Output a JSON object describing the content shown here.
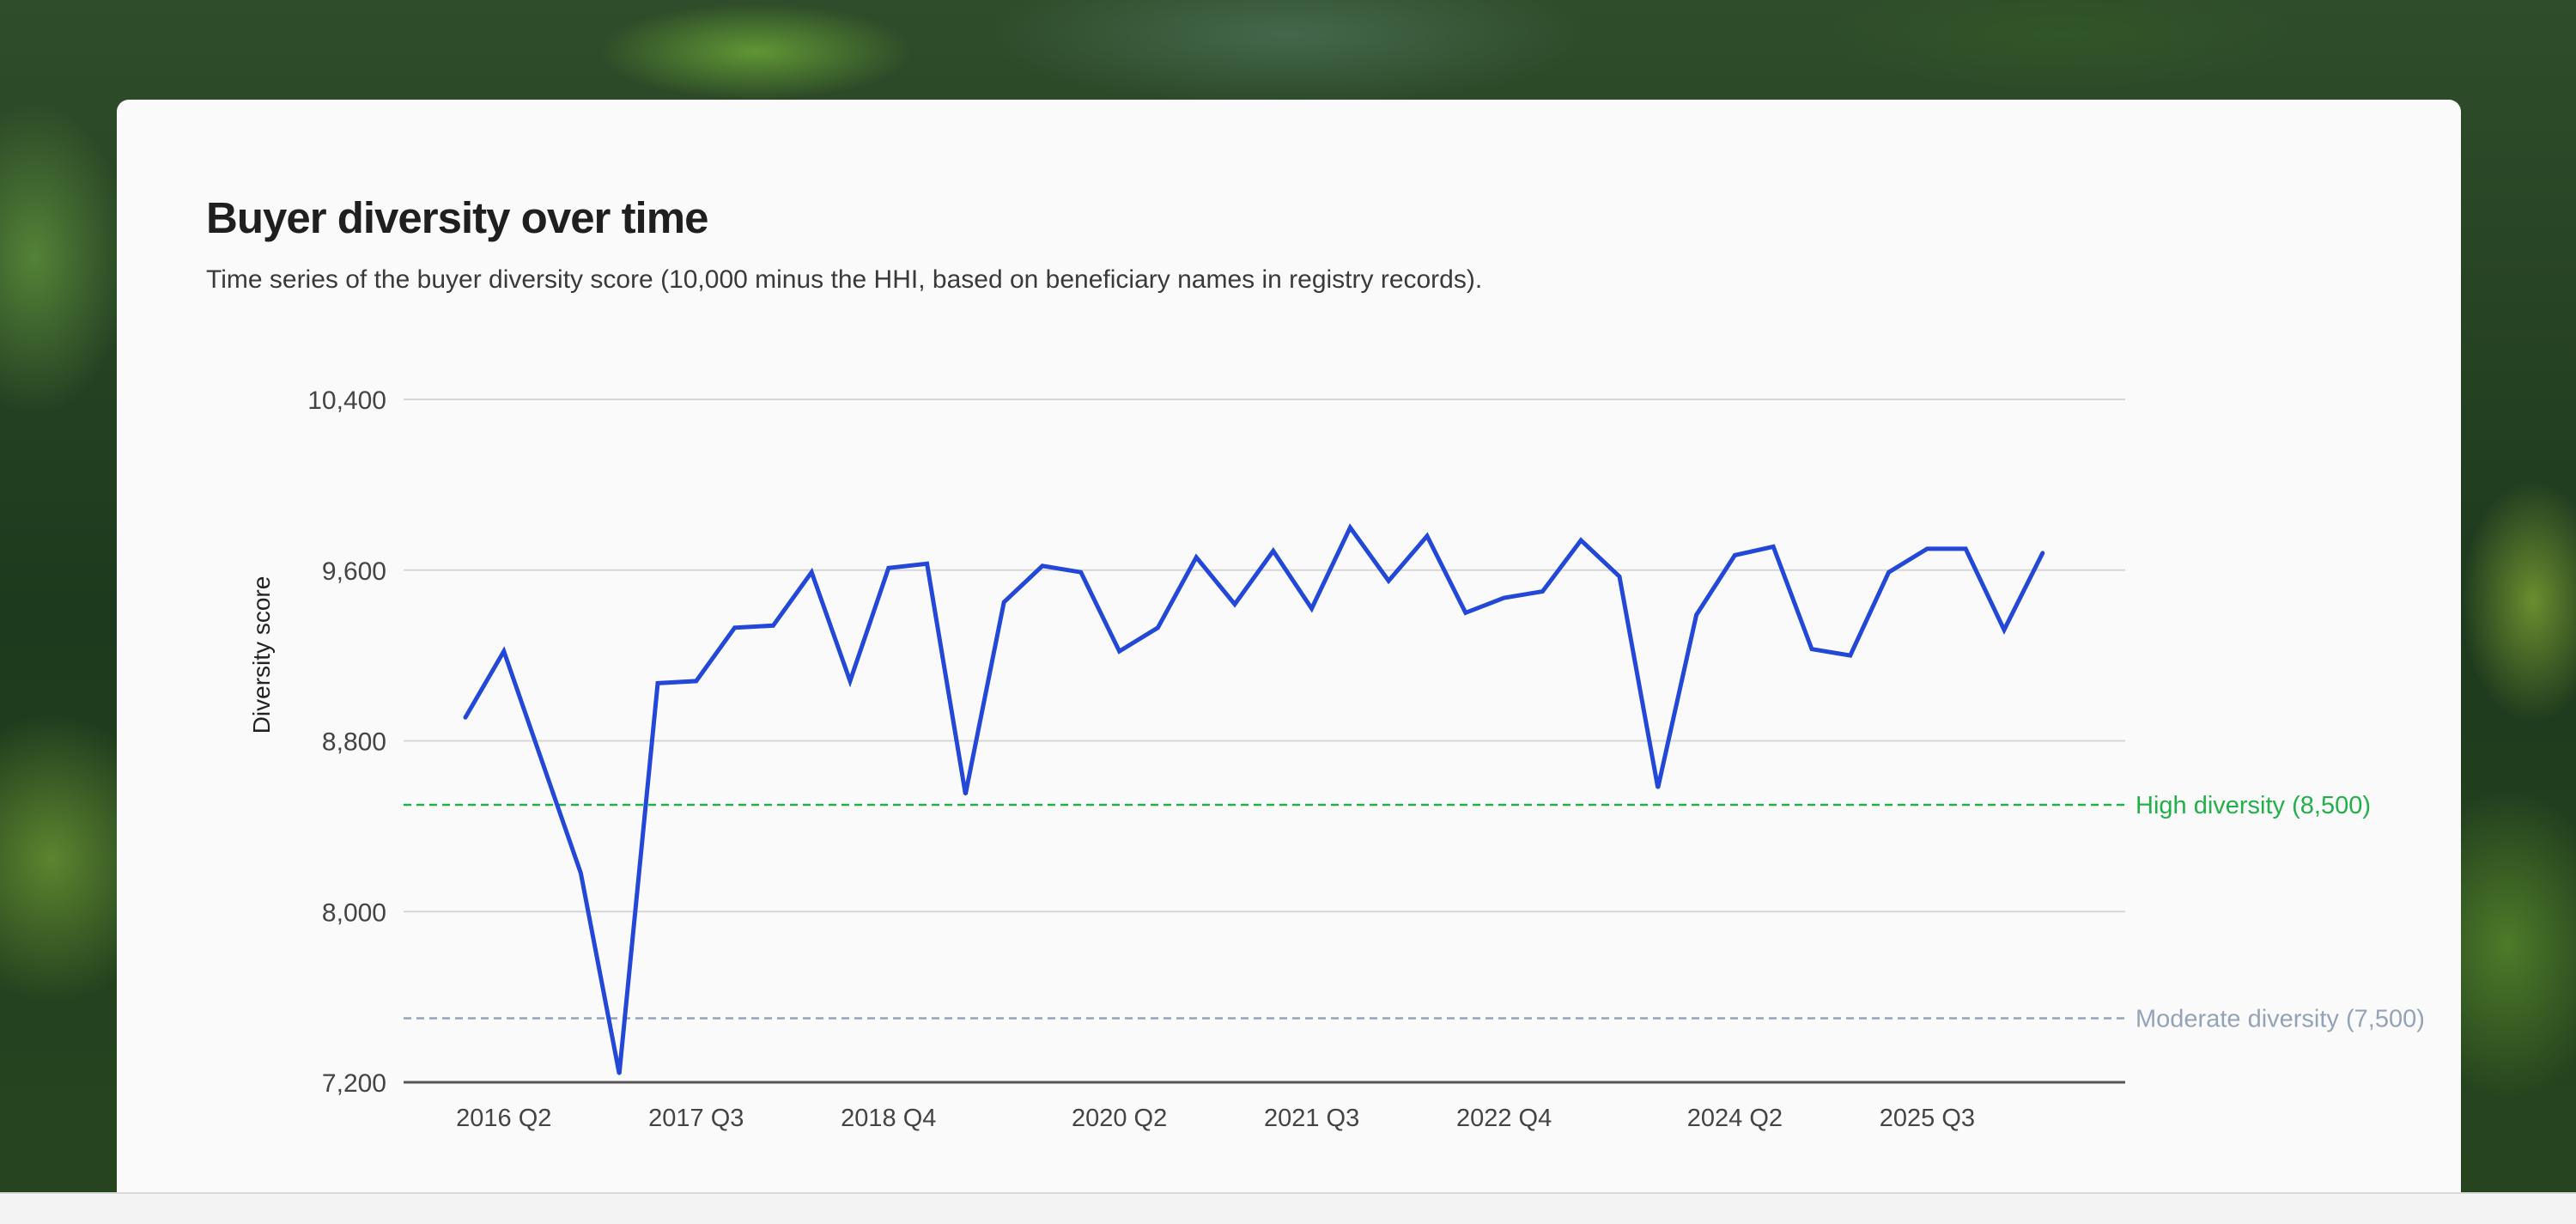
{
  "page": {
    "title": "Buyer diversity over time",
    "subtitle": "Time series of the buyer diversity score (10,000 minus the HHI, based on beneficiary names in registry records)."
  },
  "colors": {
    "line": "#2347d6",
    "high_threshold": "#22b04b",
    "moderate_threshold": "#94a3b8",
    "grid": "#d6d6d6",
    "axis": "#555555",
    "text": "#444444"
  },
  "chart_data": {
    "type": "line",
    "title": "Buyer diversity over time",
    "ylabel": "Diversity score",
    "xlabel": "",
    "ylim": [
      7200,
      10400
    ],
    "y_ticks": [
      {
        "value": 10400,
        "label": "10,400"
      },
      {
        "value": 9600,
        "label": "9,600"
      },
      {
        "value": 8800,
        "label": "8,800"
      },
      {
        "value": 8000,
        "label": "8,000"
      },
      {
        "value": 7200,
        "label": "7,200"
      }
    ],
    "x": [
      "2016 Q1",
      "2016 Q2",
      "2016 Q3",
      "2016 Q4",
      "2017 Q1",
      "2017 Q2",
      "2017 Q3",
      "2017 Q4",
      "2018 Q1",
      "2018 Q2",
      "2018 Q3",
      "2018 Q4",
      "2019 Q1",
      "2019 Q2",
      "2019 Q3",
      "2019 Q4",
      "2020 Q1",
      "2020 Q2",
      "2020 Q3",
      "2020 Q4",
      "2021 Q1",
      "2021 Q2",
      "2021 Q3",
      "2021 Q4",
      "2022 Q1",
      "2022 Q2",
      "2022 Q3",
      "2022 Q4",
      "2023 Q1",
      "2023 Q2",
      "2023 Q3",
      "2023 Q4",
      "2024 Q1",
      "2024 Q2",
      "2024 Q3",
      "2024 Q4",
      "2025 Q1",
      "2025 Q2",
      "2025 Q3",
      "2025 Q4",
      "2026 Q1",
      "2026 Q2"
    ],
    "x_tick_labels": [
      "2016 Q2",
      "2017 Q3",
      "2018 Q4",
      "2020 Q2",
      "2021 Q3",
      "2022 Q4",
      "2024 Q2",
      "2025 Q3"
    ],
    "series": [
      {
        "values": [
          8910,
          9220,
          8700,
          8180,
          7240,
          9070,
          9080,
          9330,
          9340,
          9590,
          9080,
          9610,
          9630,
          8550,
          9450,
          9620,
          9590,
          9220,
          9330,
          9660,
          9440,
          9690,
          9420,
          9800,
          9550,
          9760,
          9400,
          9470,
          9500,
          9740,
          9570,
          8580,
          9390,
          9670,
          9710,
          9230,
          9200,
          9590,
          9700,
          9700,
          9320,
          9680
        ]
      }
    ],
    "reference_lines": [
      {
        "value": 8500,
        "label": "High diversity (8,500)",
        "style": "dashed",
        "color": "#22b04b"
      },
      {
        "value": 7500,
        "label": "Moderate diversity (7,500)",
        "style": "dashed",
        "color": "#94a3b8"
      }
    ],
    "grid": true,
    "legend": "none"
  }
}
